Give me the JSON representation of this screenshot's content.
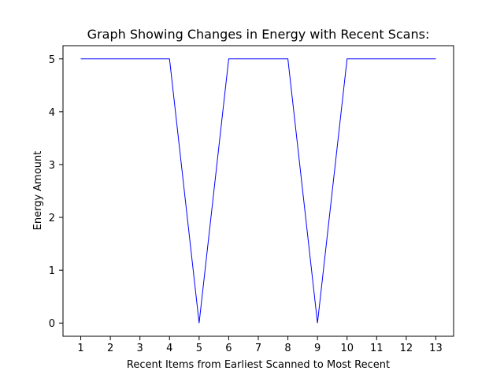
{
  "chart_data": {
    "type": "line",
    "title": "Graph Showing Changes in Energy with Recent Scans:",
    "xlabel": "Recent Items from Earliest Scanned to Most Recent",
    "ylabel": "Energy Amount",
    "x": [
      1,
      2,
      3,
      4,
      5,
      6,
      7,
      8,
      9,
      10,
      11,
      12,
      13
    ],
    "series": [
      {
        "values": [
          5,
          5,
          5,
          5,
          0,
          5,
          5,
          5,
          0,
          5,
          5,
          5,
          5
        ],
        "color": "#0000ff"
      }
    ],
    "xticks": [
      "1",
      "2",
      "3",
      "4",
      "5",
      "6",
      "7",
      "8",
      "9",
      "10",
      "11",
      "12",
      "13"
    ],
    "yticks": [
      "0",
      "1",
      "2",
      "3",
      "4",
      "5"
    ],
    "xlim": [
      0.4,
      13.6
    ],
    "ylim": [
      -0.25,
      5.25
    ],
    "grid": false,
    "legend": "none"
  }
}
